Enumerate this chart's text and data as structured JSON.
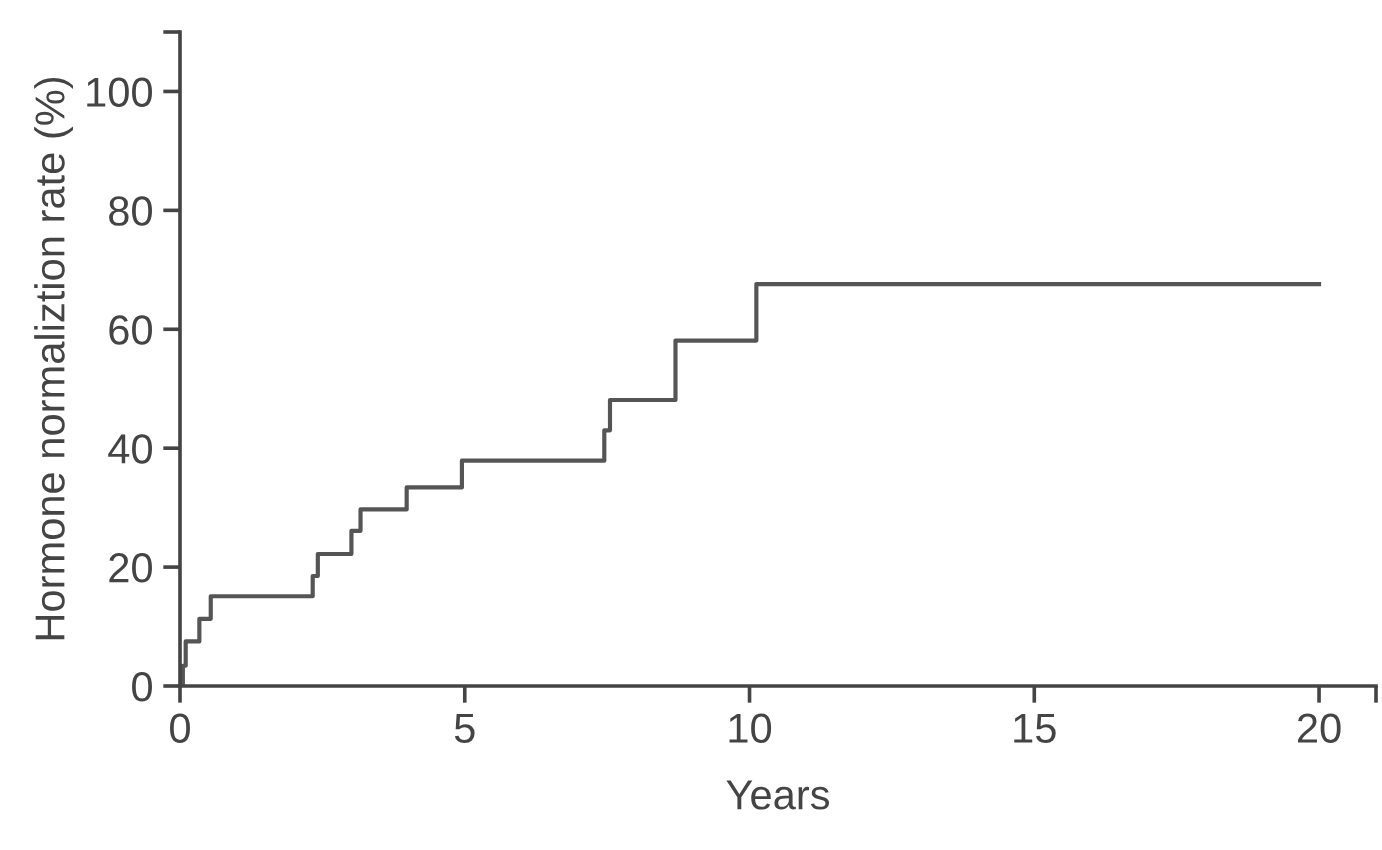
{
  "chart_data": {
    "type": "step",
    "xlabel": "Years",
    "ylabel": "Hormone normaliztion rate (%)",
    "x": [
      0,
      0.05,
      0.1,
      0.34,
      0.54,
      2.33,
      2.42,
      3.01,
      3.17,
      3.98,
      4.95,
      7.45,
      7.55,
      8.7,
      10.12,
      20
    ],
    "series": [
      {
        "color": "#555555",
        "values": [
          0,
          3.4,
          7.5,
          11.3,
          15.1,
          18.5,
          22.2,
          26.1,
          29.7,
          33.4,
          37.9,
          43,
          48.1,
          58.1,
          67.6,
          67.6
        ]
      }
    ],
    "xlim": [
      0,
      21
    ],
    "ylim": [
      0,
      110
    ],
    "xticks": [
      0,
      5,
      10,
      15,
      20,
      {
        "value": 21,
        "label": null
      }
    ],
    "yticks": [
      0,
      20,
      40,
      60,
      80,
      100,
      {
        "value": 110,
        "label": null
      }
    ],
    "grid": false,
    "legend": false
  }
}
